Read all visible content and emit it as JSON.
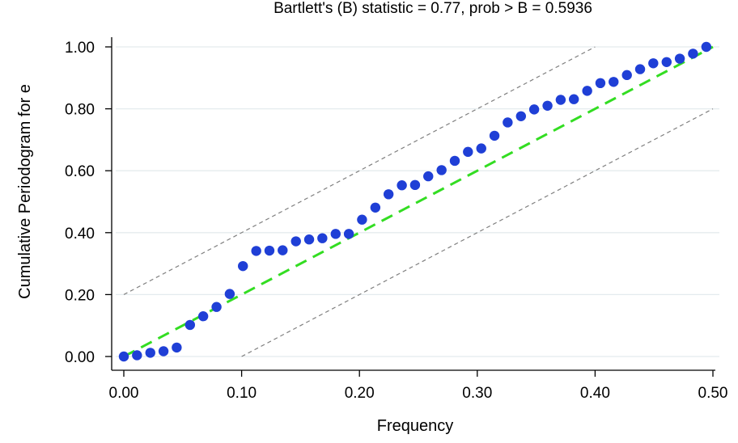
{
  "chart_data": {
    "type": "scatter",
    "title": "Bartlett's (B) statistic = 0.77, prob > B = 0.5936",
    "xlabel": "Frequency",
    "ylabel": "Cumulative Periodogram for e",
    "xlim": [
      0,
      0.5
    ],
    "ylim": [
      0,
      1
    ],
    "x_ticks": [
      "0.00",
      "0.10",
      "0.20",
      "0.30",
      "0.40",
      "0.50"
    ],
    "y_ticks": [
      "0.00",
      "0.20",
      "0.40",
      "0.60",
      "0.80",
      "1.00"
    ],
    "grid": true,
    "series": [
      {
        "kind": "points",
        "x": [
          0.0,
          0.0112,
          0.0225,
          0.0337,
          0.0449,
          0.0562,
          0.0674,
          0.0787,
          0.0899,
          0.1011,
          0.1124,
          0.1236,
          0.1348,
          0.1461,
          0.1573,
          0.1685,
          0.1798,
          0.191,
          0.2022,
          0.2135,
          0.2247,
          0.236,
          0.2472,
          0.2584,
          0.2697,
          0.2809,
          0.2921,
          0.3034,
          0.3146,
          0.3258,
          0.3371,
          0.3483,
          0.3596,
          0.3708,
          0.382,
          0.3933,
          0.4045,
          0.4157,
          0.427,
          0.4382,
          0.4494,
          0.4607,
          0.4719,
          0.4831,
          0.4944
        ],
        "y": [
          0.0,
          0.004,
          0.012,
          0.017,
          0.029,
          0.102,
          0.13,
          0.16,
          0.202,
          0.292,
          0.341,
          0.342,
          0.343,
          0.372,
          0.378,
          0.382,
          0.396,
          0.396,
          0.442,
          0.481,
          0.524,
          0.553,
          0.554,
          0.582,
          0.602,
          0.632,
          0.661,
          0.672,
          0.713,
          0.756,
          0.776,
          0.798,
          0.81,
          0.829,
          0.831,
          0.858,
          0.883,
          0.887,
          0.909,
          0.928,
          0.947,
          0.951,
          0.962,
          0.978,
          1.0
        ]
      },
      {
        "kind": "reference-line",
        "x": [
          0,
          0.5
        ],
        "y": [
          0,
          1
        ]
      },
      {
        "kind": "confidence-band",
        "x": [
          0,
          0.4
        ],
        "y": [
          0.2,
          1.0
        ]
      },
      {
        "kind": "confidence-band",
        "x": [
          0.1,
          0.5
        ],
        "y": [
          0.0,
          0.8
        ]
      }
    ]
  },
  "colors": {
    "points": "#1f3fd6",
    "reference_line": "#33dd22",
    "band_lines": "#808080",
    "grid": "#e4ebee",
    "axis": "#000000"
  }
}
